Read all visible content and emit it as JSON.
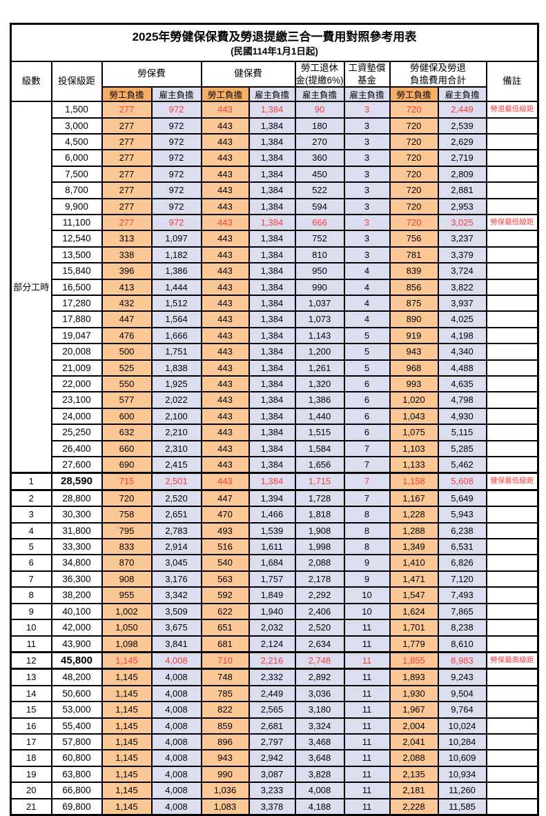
{
  "page": {
    "title": "2025年勞健保保費及勞退提繳三合一費用對照參考用表",
    "subtitle": "(民國114年1月1日起)"
  },
  "header": {
    "level": "級數",
    "bracket": "投保級距",
    "labor_insurance": "勞保費",
    "health_insurance": "健保費",
    "pension_line1": "勞工退休",
    "pension_line2": "金(提繳6%)",
    "wage_fund_line1": "工資墊償",
    "wage_fund_line2": "基金",
    "total_line1": "勞健保及勞退",
    "total_line2": "負擔費用合計",
    "remark": "備註",
    "employee": "勞工負擔",
    "employer": "雇主負擔"
  },
  "colors": {
    "employee_header_bg": "#F5AE63",
    "employee_bg": "#FAC795",
    "employer_bg": "#DDDDF0",
    "highlight_red": "#FA3C3C",
    "border": "#000000"
  },
  "table": {
    "part_time_label": "部分工時",
    "rows": [
      {
        "bracket": "1,500",
        "values": [
          "277",
          "972",
          "443",
          "1,384",
          "90",
          "3",
          "720",
          "2,449"
        ],
        "remark": "勞退最低級距",
        "red": true
      },
      {
        "bracket": "3,000",
        "values": [
          "277",
          "972",
          "443",
          "1,384",
          "180",
          "3",
          "720",
          "2,539"
        ]
      },
      {
        "bracket": "4,500",
        "values": [
          "277",
          "972",
          "443",
          "1,384",
          "270",
          "3",
          "720",
          "2,629"
        ]
      },
      {
        "bracket": "6,000",
        "values": [
          "277",
          "972",
          "443",
          "1,384",
          "360",
          "3",
          "720",
          "2,719"
        ]
      },
      {
        "bracket": "7,500",
        "values": [
          "277",
          "972",
          "443",
          "1,384",
          "450",
          "3",
          "720",
          "2,809"
        ]
      },
      {
        "bracket": "8,700",
        "values": [
          "277",
          "972",
          "443",
          "1,384",
          "522",
          "3",
          "720",
          "2,881"
        ]
      },
      {
        "bracket": "9,900",
        "values": [
          "277",
          "972",
          "443",
          "1,384",
          "594",
          "3",
          "720",
          "2,953"
        ]
      },
      {
        "bracket": "11,100",
        "values": [
          "277",
          "972",
          "443",
          "1,384",
          "666",
          "3",
          "720",
          "3,025"
        ],
        "remark": "勞保最低級距",
        "red": true
      },
      {
        "bracket": "12,540",
        "values": [
          "313",
          "1,097",
          "443",
          "1,384",
          "752",
          "3",
          "756",
          "3,237"
        ]
      },
      {
        "bracket": "13,500",
        "values": [
          "338",
          "1,182",
          "443",
          "1,384",
          "810",
          "3",
          "781",
          "3,379"
        ]
      },
      {
        "bracket": "15,840",
        "values": [
          "396",
          "1,386",
          "443",
          "1,384",
          "950",
          "4",
          "839",
          "3,724"
        ]
      },
      {
        "bracket": "16,500",
        "values": [
          "413",
          "1,444",
          "443",
          "1,384",
          "990",
          "4",
          "856",
          "3,822"
        ]
      },
      {
        "bracket": "17,280",
        "values": [
          "432",
          "1,512",
          "443",
          "1,384",
          "1,037",
          "4",
          "875",
          "3,937"
        ]
      },
      {
        "bracket": "17,880",
        "values": [
          "447",
          "1,564",
          "443",
          "1,384",
          "1,073",
          "4",
          "890",
          "4,025"
        ]
      },
      {
        "bracket": "19,047",
        "values": [
          "476",
          "1,666",
          "443",
          "1,384",
          "1,143",
          "5",
          "919",
          "4,198"
        ]
      },
      {
        "bracket": "20,008",
        "values": [
          "500",
          "1,751",
          "443",
          "1,384",
          "1,200",
          "5",
          "943",
          "4,340"
        ]
      },
      {
        "bracket": "21,009",
        "values": [
          "525",
          "1,838",
          "443",
          "1,384",
          "1,261",
          "5",
          "968",
          "4,488"
        ]
      },
      {
        "bracket": "22,000",
        "values": [
          "550",
          "1,925",
          "443",
          "1,384",
          "1,320",
          "6",
          "993",
          "4,635"
        ]
      },
      {
        "bracket": "23,100",
        "values": [
          "577",
          "2,022",
          "443",
          "1,384",
          "1,386",
          "6",
          "1,020",
          "4,798"
        ]
      },
      {
        "bracket": "24,000",
        "values": [
          "600",
          "2,100",
          "443",
          "1,384",
          "1,440",
          "6",
          "1,043",
          "4,930"
        ]
      },
      {
        "bracket": "25,250",
        "values": [
          "632",
          "2,210",
          "443",
          "1,384",
          "1,515",
          "6",
          "1,075",
          "5,115"
        ]
      },
      {
        "bracket": "26,400",
        "values": [
          "660",
          "2,310",
          "443",
          "1,384",
          "1,584",
          "7",
          "1,103",
          "5,285"
        ]
      },
      {
        "bracket": "27,600",
        "values": [
          "690",
          "2,415",
          "443",
          "1,384",
          "1,656",
          "7",
          "1,133",
          "5,462"
        ]
      },
      {
        "level": "1",
        "bracket": "28,590",
        "values": [
          "715",
          "2,501",
          "443",
          "1,384",
          "1,715",
          "7",
          "1,158",
          "5,608"
        ],
        "remark": "健保最低級距",
        "red": true,
        "bold": true,
        "thick": true
      },
      {
        "level": "2",
        "bracket": "28,800",
        "values": [
          "720",
          "2,520",
          "447",
          "1,394",
          "1,728",
          "7",
          "1,167",
          "5,649"
        ]
      },
      {
        "level": "3",
        "bracket": "30,300",
        "values": [
          "758",
          "2,651",
          "470",
          "1,466",
          "1,818",
          "8",
          "1,228",
          "5,943"
        ]
      },
      {
        "level": "4",
        "bracket": "31,800",
        "values": [
          "795",
          "2,783",
          "493",
          "1,539",
          "1,908",
          "8",
          "1,288",
          "6,238"
        ]
      },
      {
        "level": "5",
        "bracket": "33,300",
        "values": [
          "833",
          "2,914",
          "516",
          "1,611",
          "1,998",
          "8",
          "1,349",
          "6,531"
        ]
      },
      {
        "level": "6",
        "bracket": "34,800",
        "values": [
          "870",
          "3,045",
          "540",
          "1,684",
          "2,088",
          "9",
          "1,410",
          "6,826"
        ]
      },
      {
        "level": "7",
        "bracket": "36,300",
        "values": [
          "908",
          "3,176",
          "563",
          "1,757",
          "2,178",
          "9",
          "1,471",
          "7,120"
        ]
      },
      {
        "level": "8",
        "bracket": "38,200",
        "values": [
          "955",
          "3,342",
          "592",
          "1,849",
          "2,292",
          "10",
          "1,547",
          "7,493"
        ]
      },
      {
        "level": "9",
        "bracket": "40,100",
        "values": [
          "1,002",
          "3,509",
          "622",
          "1,940",
          "2,406",
          "10",
          "1,624",
          "7,865"
        ]
      },
      {
        "level": "10",
        "bracket": "42,000",
        "values": [
          "1,050",
          "3,675",
          "651",
          "2,032",
          "2,520",
          "11",
          "1,701",
          "8,238"
        ]
      },
      {
        "level": "11",
        "bracket": "43,900",
        "values": [
          "1,098",
          "3,841",
          "681",
          "2,124",
          "2,634",
          "11",
          "1,779",
          "8,610"
        ]
      },
      {
        "level": "12",
        "bracket": "45,800",
        "values": [
          "1,145",
          "4,008",
          "710",
          "2,216",
          "2,748",
          "11",
          "1,855",
          "8,983"
        ],
        "remark": "勞保最高級距",
        "red": true,
        "bold": true,
        "thick": true
      },
      {
        "level": "13",
        "bracket": "48,200",
        "values": [
          "1,145",
          "4,008",
          "748",
          "2,332",
          "2,892",
          "11",
          "1,893",
          "9,243"
        ]
      },
      {
        "level": "14",
        "bracket": "50,600",
        "values": [
          "1,145",
          "4,008",
          "785",
          "2,449",
          "3,036",
          "11",
          "1,930",
          "9,504"
        ]
      },
      {
        "level": "15",
        "bracket": "53,000",
        "values": [
          "1,145",
          "4,008",
          "822",
          "2,565",
          "3,180",
          "11",
          "1,967",
          "9,764"
        ]
      },
      {
        "level": "16",
        "bracket": "55,400",
        "values": [
          "1,145",
          "4,008",
          "859",
          "2,681",
          "3,324",
          "11",
          "2,004",
          "10,024"
        ]
      },
      {
        "level": "17",
        "bracket": "57,800",
        "values": [
          "1,145",
          "4,008",
          "896",
          "2,797",
          "3,468",
          "11",
          "2,041",
          "10,284"
        ]
      },
      {
        "level": "18",
        "bracket": "60,800",
        "values": [
          "1,145",
          "4,008",
          "943",
          "2,942",
          "3,648",
          "11",
          "2,088",
          "10,609"
        ]
      },
      {
        "level": "19",
        "bracket": "63,800",
        "values": [
          "1,145",
          "4,008",
          "990",
          "3,087",
          "3,828",
          "11",
          "2,135",
          "10,934"
        ]
      },
      {
        "level": "20",
        "bracket": "66,800",
        "values": [
          "1,145",
          "4,008",
          "1,036",
          "3,233",
          "4,008",
          "11",
          "2,181",
          "11,260"
        ]
      },
      {
        "level": "21",
        "bracket": "69,800",
        "values": [
          "1,145",
          "4,008",
          "1,083",
          "3,378",
          "4,188",
          "11",
          "2,228",
          "11,585"
        ]
      }
    ]
  }
}
